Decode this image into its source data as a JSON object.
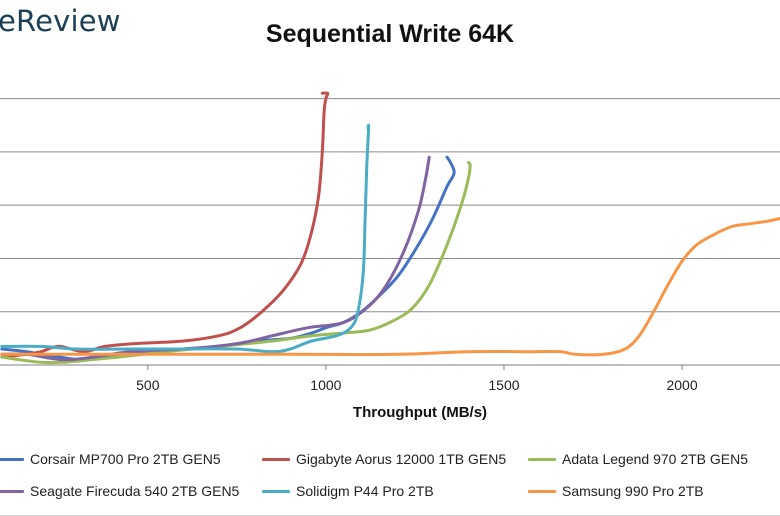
{
  "branding": {
    "logo_text": "eReview"
  },
  "chart_data": {
    "type": "line",
    "title": "Sequential Write 64K",
    "xlabel": "Throughput (MB/s)",
    "ylabel": "",
    "xlim": [
      85,
      2275
    ],
    "ylim": [
      0,
      110
    ],
    "xticks": [
      500,
      1000,
      1500,
      2000
    ],
    "grid": "horizontal",
    "legend_position": "bottom",
    "series": [
      {
        "name": "Corsair MP700 Pro 2TB GEN5",
        "color": "#4472C4",
        "points": [
          [
            90,
            6
          ],
          [
            160,
            5
          ],
          [
            250,
            3
          ],
          [
            320,
            2
          ],
          [
            400,
            3
          ],
          [
            500,
            5
          ],
          [
            600,
            6
          ],
          [
            700,
            7
          ],
          [
            800,
            9
          ],
          [
            900,
            10
          ],
          [
            960,
            12
          ],
          [
            1000,
            14
          ],
          [
            1050,
            16
          ],
          [
            1100,
            20
          ],
          [
            1150,
            26
          ],
          [
            1200,
            33
          ],
          [
            1250,
            43
          ],
          [
            1300,
            55
          ],
          [
            1340,
            67
          ],
          [
            1360,
            72
          ],
          [
            1350,
            76
          ],
          [
            1340,
            78
          ]
        ]
      },
      {
        "name": "Gigabyte Aorus 12000 1TB GEN5",
        "color": "#C0504D",
        "points": [
          [
            90,
            3
          ],
          [
            160,
            4
          ],
          [
            200,
            5
          ],
          [
            250,
            7
          ],
          [
            320,
            5
          ],
          [
            380,
            7
          ],
          [
            460,
            8
          ],
          [
            600,
            9
          ],
          [
            700,
            11
          ],
          [
            760,
            14
          ],
          [
            820,
            20
          ],
          [
            880,
            28
          ],
          [
            930,
            38
          ],
          [
            960,
            50
          ],
          [
            980,
            64
          ],
          [
            990,
            80
          ],
          [
            995,
            95
          ],
          [
            1000,
            100
          ],
          [
            1005,
            102
          ],
          [
            990,
            102
          ]
        ]
      },
      {
        "name": "Adata Legend 970 2TB GEN5",
        "color": "#9BBB59",
        "points": [
          [
            90,
            3
          ],
          [
            140,
            2
          ],
          [
            200,
            1
          ],
          [
            260,
            1
          ],
          [
            340,
            2
          ],
          [
            420,
            3
          ],
          [
            550,
            5
          ],
          [
            700,
            7
          ],
          [
            850,
            9
          ],
          [
            960,
            11
          ],
          [
            1050,
            12
          ],
          [
            1120,
            13
          ],
          [
            1180,
            16
          ],
          [
            1240,
            21
          ],
          [
            1290,
            30
          ],
          [
            1340,
            45
          ],
          [
            1380,
            60
          ],
          [
            1400,
            70
          ],
          [
            1405,
            75
          ],
          [
            1400,
            76
          ]
        ]
      },
      {
        "name": "Seagate Firecuda 540 2TB GEN5",
        "color": "#8064A2",
        "points": [
          [
            90,
            4
          ],
          [
            160,
            4
          ],
          [
            260,
            2
          ],
          [
            350,
            3
          ],
          [
            450,
            5
          ],
          [
            600,
            6
          ],
          [
            750,
            8
          ],
          [
            850,
            11
          ],
          [
            950,
            14
          ],
          [
            1050,
            16
          ],
          [
            1120,
            22
          ],
          [
            1170,
            30
          ],
          [
            1220,
            43
          ],
          [
            1260,
            58
          ],
          [
            1280,
            70
          ],
          [
            1290,
            78
          ]
        ]
      },
      {
        "name": "Solidigm P44 Pro 2TB",
        "color": "#4BACC6",
        "points": [
          [
            90,
            7
          ],
          [
            200,
            7
          ],
          [
            300,
            6
          ],
          [
            450,
            6
          ],
          [
            600,
            6
          ],
          [
            750,
            6
          ],
          [
            850,
            5
          ],
          [
            900,
            6
          ],
          [
            960,
            9
          ],
          [
            1030,
            11
          ],
          [
            1070,
            14
          ],
          [
            1090,
            20
          ],
          [
            1105,
            35
          ],
          [
            1110,
            55
          ],
          [
            1115,
            75
          ],
          [
            1120,
            89
          ],
          [
            1118,
            89
          ]
        ]
      },
      {
        "name": "Samsung 990 Pro 2TB",
        "color": "#F79646",
        "points": [
          [
            90,
            4
          ],
          [
            300,
            4
          ],
          [
            600,
            4
          ],
          [
            900,
            4
          ],
          [
            1200,
            4
          ],
          [
            1400,
            5
          ],
          [
            1580,
            5
          ],
          [
            1660,
            5
          ],
          [
            1700,
            4
          ],
          [
            1780,
            4
          ],
          [
            1840,
            6
          ],
          [
            1880,
            11
          ],
          [
            1920,
            20
          ],
          [
            1960,
            30
          ],
          [
            2000,
            39
          ],
          [
            2040,
            45
          ],
          [
            2090,
            49
          ],
          [
            2140,
            52
          ],
          [
            2190,
            53
          ],
          [
            2240,
            54
          ],
          [
            2275,
            55
          ]
        ]
      }
    ]
  }
}
